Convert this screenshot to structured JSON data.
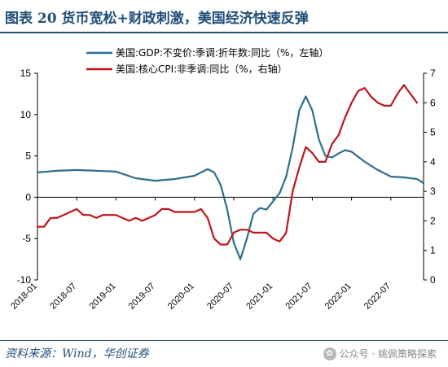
{
  "title": "图表 20  货币宽松+财政刺激，美国经济快速反弹",
  "source": "资料来源：Wind，华创证券",
  "watermark": "公众号 · 姚佩策略探索",
  "chart_data": {
    "type": "line",
    "x_tick_labels": [
      "2018-01",
      "2018-07",
      "2019-01",
      "2019-07",
      "2020-01",
      "2020-07",
      "2021-01",
      "2021-07",
      "2022-01",
      "2022-07"
    ],
    "x_range": [
      "2018-01",
      "2022-12"
    ],
    "left_axis": {
      "ylim": [
        -10,
        15
      ],
      "ticks": [
        -10,
        -5,
        0,
        5,
        10,
        15
      ]
    },
    "right_axis": {
      "ylim": [
        0,
        7
      ],
      "ticks": [
        0,
        1,
        2,
        3,
        4,
        5,
        6,
        7
      ]
    },
    "grid": false,
    "legend_position": "top-center",
    "series": [
      {
        "name": "美国:GDP:不变价:季调:折年数:同比（%，左轴）",
        "axis": "left",
        "color": "#2e6e8e",
        "points": [
          [
            "2018-01",
            3.0
          ],
          [
            "2018-04",
            3.2
          ],
          [
            "2018-07",
            3.3
          ],
          [
            "2018-10",
            3.2
          ],
          [
            "2019-01",
            3.1
          ],
          [
            "2019-04",
            2.3
          ],
          [
            "2019-07",
            2.0
          ],
          [
            "2019-10",
            2.2
          ],
          [
            "2020-01",
            2.6
          ],
          [
            "2020-02",
            3.0
          ],
          [
            "2020-03",
            3.4
          ],
          [
            "2020-04",
            3.0
          ],
          [
            "2020-05",
            1.5
          ],
          [
            "2020-06",
            -1.5
          ],
          [
            "2020-07",
            -5.5
          ],
          [
            "2020-08",
            -7.5
          ],
          [
            "2020-09",
            -5.0
          ],
          [
            "2020-10",
            -2.0
          ],
          [
            "2020-11",
            -1.3
          ],
          [
            "2020-12",
            -1.5
          ],
          [
            "2021-01",
            -0.5
          ],
          [
            "2021-02",
            0.5
          ],
          [
            "2021-03",
            2.5
          ],
          [
            "2021-04",
            6.0
          ],
          [
            "2021-05",
            10.5
          ],
          [
            "2021-06",
            12.2
          ],
          [
            "2021-07",
            10.5
          ],
          [
            "2021-08",
            7.0
          ],
          [
            "2021-09",
            5.0
          ],
          [
            "2021-10",
            4.8
          ],
          [
            "2021-11",
            5.3
          ],
          [
            "2021-12",
            5.7
          ],
          [
            "2022-01",
            5.5
          ],
          [
            "2022-03",
            4.3
          ],
          [
            "2022-05",
            3.3
          ],
          [
            "2022-07",
            2.5
          ],
          [
            "2022-09",
            2.4
          ],
          [
            "2022-11",
            2.2
          ],
          [
            "2022-12",
            1.7
          ]
        ]
      },
      {
        "name": "美国:核心CPI:非季调:同比（%，右轴）",
        "axis": "right",
        "color": "#c0141a",
        "points": [
          [
            "2018-01",
            1.8
          ],
          [
            "2018-02",
            1.8
          ],
          [
            "2018-03",
            2.1
          ],
          [
            "2018-04",
            2.1
          ],
          [
            "2018-05",
            2.2
          ],
          [
            "2018-06",
            2.3
          ],
          [
            "2018-07",
            2.4
          ],
          [
            "2018-08",
            2.2
          ],
          [
            "2018-09",
            2.2
          ],
          [
            "2018-10",
            2.1
          ],
          [
            "2018-11",
            2.2
          ],
          [
            "2018-12",
            2.2
          ],
          [
            "2019-01",
            2.2
          ],
          [
            "2019-02",
            2.1
          ],
          [
            "2019-03",
            2.0
          ],
          [
            "2019-04",
            2.1
          ],
          [
            "2019-05",
            2.0
          ],
          [
            "2019-06",
            2.1
          ],
          [
            "2019-07",
            2.2
          ],
          [
            "2019-08",
            2.4
          ],
          [
            "2019-09",
            2.4
          ],
          [
            "2019-10",
            2.3
          ],
          [
            "2019-11",
            2.3
          ],
          [
            "2019-12",
            2.3
          ],
          [
            "2020-01",
            2.3
          ],
          [
            "2020-02",
            2.4
          ],
          [
            "2020-03",
            2.1
          ],
          [
            "2020-04",
            1.4
          ],
          [
            "2020-05",
            1.2
          ],
          [
            "2020-06",
            1.2
          ],
          [
            "2020-07",
            1.6
          ],
          [
            "2020-08",
            1.7
          ],
          [
            "2020-09",
            1.7
          ],
          [
            "2020-10",
            1.6
          ],
          [
            "2020-11",
            1.6
          ],
          [
            "2020-12",
            1.6
          ],
          [
            "2021-01",
            1.4
          ],
          [
            "2021-02",
            1.3
          ],
          [
            "2021-03",
            1.6
          ],
          [
            "2021-04",
            3.0
          ],
          [
            "2021-05",
            3.8
          ],
          [
            "2021-06",
            4.5
          ],
          [
            "2021-07",
            4.3
          ],
          [
            "2021-08",
            4.0
          ],
          [
            "2021-09",
            4.0
          ],
          [
            "2021-10",
            4.6
          ],
          [
            "2021-11",
            4.9
          ],
          [
            "2021-12",
            5.5
          ],
          [
            "2022-01",
            6.0
          ],
          [
            "2022-02",
            6.4
          ],
          [
            "2022-03",
            6.5
          ],
          [
            "2022-04",
            6.2
          ],
          [
            "2022-05",
            6.0
          ],
          [
            "2022-06",
            5.9
          ],
          [
            "2022-07",
            5.9
          ],
          [
            "2022-08",
            6.3
          ],
          [
            "2022-09",
            6.6
          ],
          [
            "2022-10",
            6.3
          ],
          [
            "2022-11",
            6.0
          ]
        ]
      }
    ]
  }
}
